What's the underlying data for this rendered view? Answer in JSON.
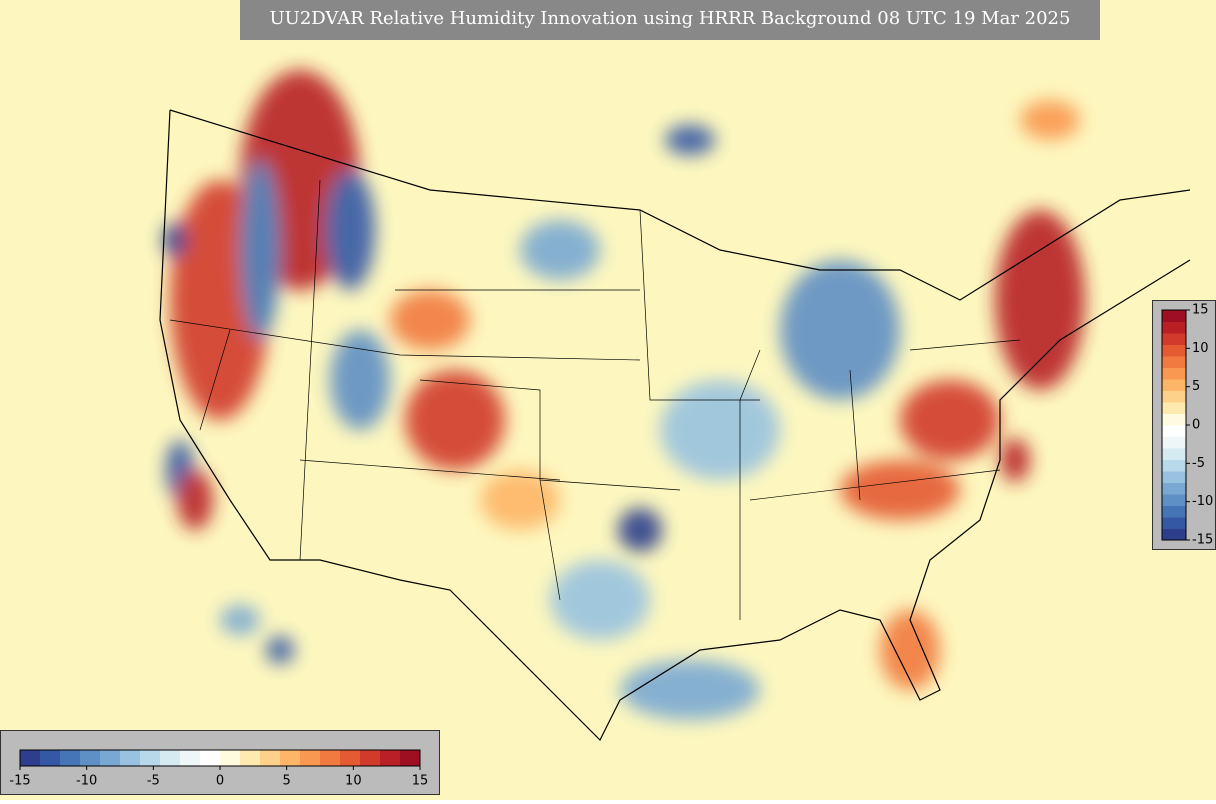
{
  "title": "UU2DVAR Relative Humidity Innovation using HRRR Background 08 UTC 19 Mar 2025",
  "colorbar": {
    "lim": [
      -15,
      15
    ],
    "ticks": [
      -15,
      -10,
      -5,
      0,
      5,
      10,
      15
    ],
    "colors": [
      "#2c3e8c",
      "#3558a5",
      "#4575b4",
      "#5e8fc5",
      "#79a9d3",
      "#98c2e0",
      "#b8d9ea",
      "#d6eaf2",
      "#eef6f8",
      "#ffffff",
      "#fffbe0",
      "#fee9b0",
      "#fdd18a",
      "#fdb667",
      "#f99850",
      "#f17a41",
      "#e45a33",
      "#d13b2b",
      "#b82026",
      "#9e0f24"
    ]
  }
}
